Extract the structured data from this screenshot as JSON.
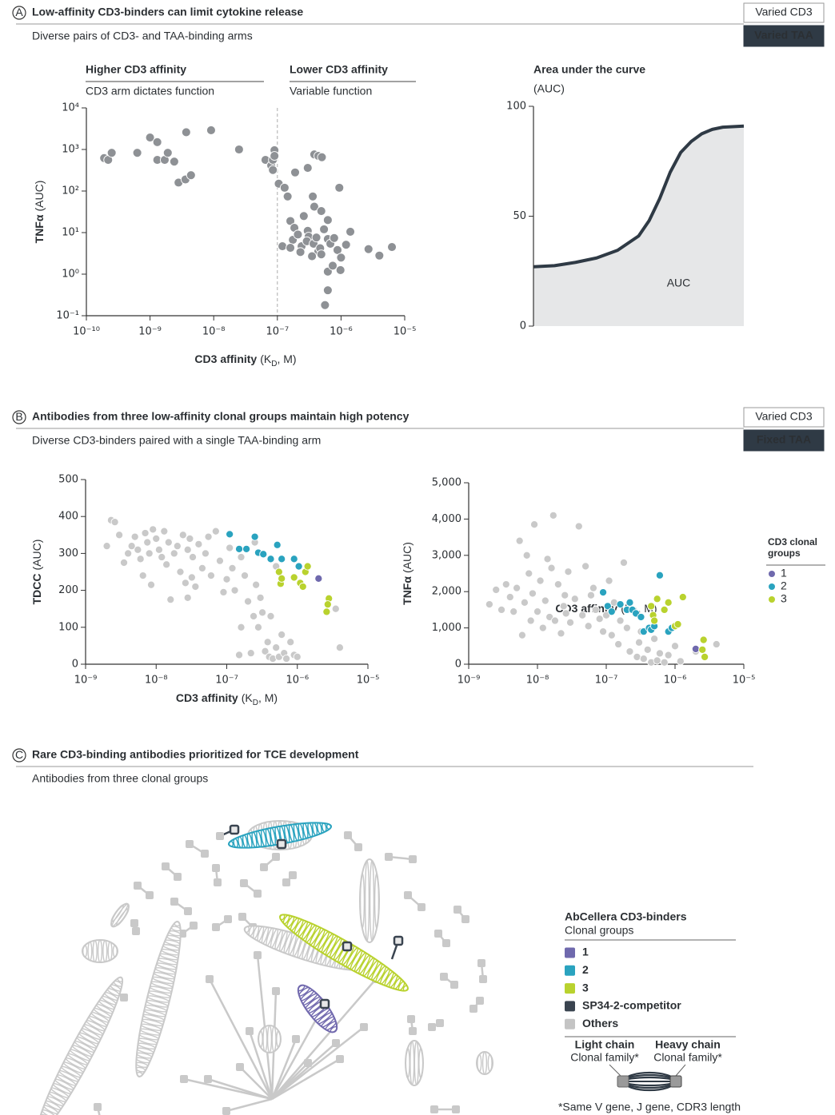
{
  "panels": [
    {
      "letter": "A",
      "title": "Low-affinity CD3-binders can limit cytokine release",
      "subtitle": "Diverse pairs of CD3- and TAA-binding arms",
      "tags": [
        "Varied CD3",
        "Varied TAA"
      ]
    },
    {
      "letter": "B",
      "title": "Antibodies from three low-affinity clonal groups maintain high potency",
      "subtitle": "Diverse CD3-binders paired with a single TAA-binding arm",
      "tags": [
        "Varied CD3",
        "Fixed TAA"
      ]
    },
    {
      "letter": "C",
      "title": "Rare CD3-binding antibodies prioritized for TCE development",
      "subtitle": "Antibodies from three clonal groups"
    }
  ],
  "chart_data": [
    {
      "type": "scatter",
      "xscale": "log",
      "yscale": "log",
      "annotations": [
        {
          "title": "Higher CD3 affinity",
          "subtitle": "CD3 arm dictates function"
        },
        {
          "title": "Lower CD3 affinity",
          "subtitle": "Variable function"
        }
      ],
      "y_label": [
        "TNFα",
        "(AUC)"
      ],
      "x_label": [
        "CD3 affinity",
        "(K",
        "D",
        ", M)"
      ],
      "xlim": [
        1e-10,
        1e-05
      ],
      "xticks": [
        {
          "value": 1e-10,
          "label": "10⁻¹⁰"
        },
        {
          "value": 1e-09,
          "label": "10⁻⁹"
        },
        {
          "value": 1e-08,
          "label": "10⁻⁸"
        },
        {
          "value": 1e-07,
          "label": "10⁻⁷"
        },
        {
          "value": 1e-06,
          "label": "10⁻⁶"
        },
        {
          "value": 1e-05,
          "label": "10⁻⁵"
        }
      ],
      "ylim": [
        0.1,
        10000
      ],
      "yticks": [
        {
          "value": 10000,
          "label": "10⁴"
        },
        {
          "value": 1000,
          "label": "10³"
        },
        {
          "value": 100,
          "label": "10²"
        },
        {
          "value": 10,
          "label": "10¹"
        },
        {
          "value": 1,
          "label": "10⁰"
        },
        {
          "value": 0.1,
          "label": "10⁻¹"
        }
      ],
      "reference_x": 1e-07,
      "series": [
        {
          "color": "#8e9195",
          "x": [
            1.9e-10,
            2.2e-10,
            2.5e-10,
            6.3e-10,
            1e-09,
            1.3e-09,
            1.3e-09,
            1.7e-09,
            1.9e-09,
            2.4e-09,
            2.8e-09,
            3.6e-09,
            4.4e-09,
            3.7e-09,
            9.1e-09,
            2.5e-08,
            6.5e-08,
            8e-08,
            8.5e-08,
            9e-08,
            9e-08,
            8.5e-08,
            1.05e-07,
            1.3e-07,
            1.45e-07,
            1.9e-07,
            3e-07,
            3.8e-07,
            4.4e-07,
            5e-07,
            3.6e-07,
            3.8e-07,
            4.9e-07,
            6.2e-07,
            9.4e-07,
            6.2e-07,
            1.6e-07,
            1.85e-07,
            1.75e-07,
            2.1e-07,
            2.4e-07,
            3e-07,
            3.1e-07,
            2.9e-07,
            3.7e-07,
            4.1e-07,
            4.4e-07,
            4.7e-07,
            4.9e-07,
            5.4e-07,
            6.8e-07,
            7.8e-07,
            8.8e-07,
            1e-06,
            9.8e-07,
            6.2e-07,
            6.2e-07,
            5.6e-07,
            1.2e-06,
            1.4e-06,
            2.7e-06,
            4e-06,
            6.3e-06,
            1.2e-07,
            1.6e-07,
            2.3e-07,
            2.6e-07,
            3.5e-07,
            7.4e-07
          ],
          "values": [
            620,
            560,
            830,
            830,
            1940,
            1500,
            560,
            560,
            830,
            510,
            160,
            190,
            240,
            2600,
            2900,
            1000,
            560,
            410,
            560,
            960,
            700,
            320,
            150,
            120,
            74,
            280,
            360,
            760,
            700,
            650,
            74,
            42,
            33,
            20,
            120,
            7,
            19,
            13,
            6.7,
            9,
            4.7,
            11,
            8,
            6.2,
            5.4,
            7.6,
            3.5,
            4.2,
            3,
            12,
            5.4,
            7.4,
            3.8,
            2.5,
            1.25,
            1.15,
            0.41,
            0.18,
            5.1,
            10.5,
            4,
            2.8,
            4.5,
            4.7,
            4.3,
            3.4,
            25,
            2.7,
            1.6
          ]
        }
      ]
    },
    {
      "type": "area",
      "title": "Area under the curve",
      "subtitle": "(AUC)",
      "annotation": "AUC",
      "xlim": [
        0,
        100
      ],
      "ylim": [
        0,
        100
      ],
      "yticks": [
        0,
        50,
        100
      ],
      "color": "#2f3a45",
      "fill": "#e6e7e8",
      "x": [
        0,
        10,
        20,
        30,
        40,
        50,
        55,
        60,
        65,
        70,
        75,
        80,
        85,
        90,
        100
      ],
      "values": [
        27,
        27.5,
        29,
        31,
        34.5,
        41,
        48,
        58,
        70,
        79,
        84,
        87.5,
        89.5,
        90.5,
        91
      ]
    },
    {
      "type": "scatter",
      "xscale": "log",
      "y_label": [
        "TDCC",
        "(AUC)"
      ],
      "x_label": [
        "CD3 affinity",
        "(K",
        "D",
        ", M)"
      ],
      "xlim": [
        1e-09,
        1e-05
      ],
      "xticks": [
        {
          "value": 1e-09,
          "label": "10⁻⁹"
        },
        {
          "value": 1e-08,
          "label": "10⁻⁸"
        },
        {
          "value": 1e-07,
          "label": "10⁻⁷"
        },
        {
          "value": 1e-06,
          "label": "10⁻⁶"
        },
        {
          "value": 1e-05,
          "label": "10⁻⁵"
        }
      ],
      "ylim": [
        0,
        500
      ],
      "yticks": [
        0,
        100,
        200,
        300,
        400,
        500
      ],
      "series": [
        {
          "color": "#c9c9c9",
          "x": [
            2.3e-09,
            2.6e-09,
            2e-09,
            3e-09,
            3.5e-09,
            4e-09,
            4.5e-09,
            5e-09,
            5.5e-09,
            6e-09,
            6.5e-09,
            7e-09,
            7.5e-09,
            8e-09,
            8.5e-09,
            9e-09,
            1e-08,
            1.1e-08,
            1.2e-08,
            1.3e-08,
            1.4e-08,
            1.5e-08,
            1.6e-08,
            1.8e-08,
            2e-08,
            2.2e-08,
            2.4e-08,
            2.6e-08,
            2.8e-08,
            3e-08,
            3.3e-08,
            3.6e-08,
            4e-08,
            4.5e-08,
            5e-08,
            5.5e-08,
            6e-08,
            7e-08,
            8e-08,
            9e-08,
            1e-07,
            1.1e-07,
            1.2e-07,
            1.3e-07,
            1.5e-07,
            1.6e-07,
            1.8e-07,
            2e-07,
            2.2e-07,
            2.4e-07,
            2.6e-07,
            2.8e-07,
            3e-07,
            3.2e-07,
            3.5e-07,
            3.8e-07,
            4e-07,
            4.2e-07,
            4.5e-07,
            5e-07,
            5.5e-07,
            6e-07,
            6.5e-07,
            7e-07,
            8e-07,
            9e-07,
            1e-06,
            3.5e-06,
            4e-06,
            1.6e-07,
            2.5e-07,
            5e-07,
            2.8e-08,
            3.2e-08
          ],
          "values": [
            390,
            385,
            320,
            350,
            275,
            300,
            320,
            345,
            310,
            285,
            240,
            355,
            330,
            300,
            215,
            365,
            340,
            310,
            290,
            360,
            270,
            330,
            175,
            300,
            320,
            250,
            350,
            220,
            310,
            340,
            290,
            210,
            325,
            260,
            300,
            345,
            240,
            360,
            280,
            195,
            230,
            315,
            260,
            200,
            25,
            290,
            240,
            170,
            30,
            130,
            215,
            100,
            180,
            140,
            35,
            60,
            20,
            130,
            15,
            45,
            20,
            80,
            30,
            15,
            60,
            25,
            20,
            150,
            45,
            100,
            330,
            265,
            180,
            235
          ]
        },
        {
          "name": "1",
          "color": "#6f69ad",
          "x": [
            2e-06
          ],
          "values": [
            232
          ]
        },
        {
          "name": "2",
          "color": "#2aa3bf",
          "x": [
            1.1e-07,
            1.5e-07,
            1.9e-07,
            2.5e-07,
            2.8e-07,
            3.3e-07,
            4.2e-07,
            5.2e-07,
            6e-07,
            9e-07,
            1.05e-06
          ],
          "values": [
            352,
            312,
            312,
            345,
            302,
            298,
            285,
            323,
            285,
            285,
            265
          ]
        },
        {
          "name": "3",
          "color": "#b9d22e",
          "x": [
            5.5e-07,
            5.8e-07,
            6e-07,
            9e-07,
            1.1e-06,
            1.3e-06,
            1.4e-06,
            1.2e-06,
            2.8e-06,
            2.7e-06,
            2.6e-06
          ],
          "values": [
            250,
            218,
            232,
            235,
            220,
            250,
            265,
            210,
            178,
            162,
            142
          ]
        }
      ]
    },
    {
      "type": "scatter",
      "xscale": "log",
      "legend_title": "CD3 clonal groups",
      "y_label": [
        "TNFα",
        "(AUC)"
      ],
      "x_label": [
        "CD3 affinity",
        "(K",
        "D",
        ", M)"
      ],
      "xlim": [
        1e-09,
        1e-05
      ],
      "xticks": [
        {
          "value": 1e-09,
          "label": "10⁻⁹"
        },
        {
          "value": 1e-08,
          "label": "10⁻⁸"
        },
        {
          "value": 1e-07,
          "label": "10⁻⁷"
        },
        {
          "value": 1e-06,
          "label": "10⁻⁶"
        },
        {
          "value": 1e-05,
          "label": "10⁻⁵"
        }
      ],
      "ylim": [
        0,
        5000
      ],
      "yticks": [
        0,
        {
          "value": 1000,
          "label": "1,000"
        },
        {
          "value": 2000,
          "label": "2,000"
        },
        {
          "value": 3000,
          "label": "3,000"
        },
        {
          "value": 4000,
          "label": "4,000"
        },
        {
          "value": 5000,
          "label": "5,000"
        }
      ],
      "series": [
        {
          "color": "#c9c9c9",
          "x": [
            2e-09,
            2.5e-09,
            3e-09,
            3.5e-09,
            4e-09,
            4.5e-09,
            5e-09,
            5.5e-09,
            6e-09,
            6.5e-09,
            7e-09,
            7.5e-09,
            8e-09,
            8.5e-09,
            9e-09,
            1e-08,
            1.1e-08,
            1.2e-08,
            1.3e-08,
            1.4e-08,
            1.5e-08,
            1.6e-08,
            1.7e-08,
            1.8e-08,
            2e-08,
            2.2e-08,
            2.4e-08,
            2.6e-08,
            2.8e-08,
            3e-08,
            3.5e-08,
            4e-08,
            4.5e-08,
            5e-08,
            5.5e-08,
            6e-08,
            7e-08,
            8e-08,
            9e-08,
            1e-07,
            1.1e-07,
            1.2e-07,
            1.3e-07,
            1.5e-07,
            1.6e-07,
            1.8e-07,
            2e-07,
            2.2e-07,
            2.5e-07,
            2.8e-07,
            3e-07,
            3.2e-07,
            3.5e-07,
            4e-07,
            4.5e-07,
            5e-07,
            5.5e-07,
            6e-07,
            7e-07,
            8e-07,
            1e-06,
            1.2e-06,
            2e-06,
            4e-06,
            2.5e-08,
            6.5e-08
          ],
          "values": [
            1650,
            2050,
            1500,
            2200,
            1850,
            1450,
            2100,
            3400,
            800,
            1700,
            3000,
            2500,
            1200,
            1950,
            3850,
            1450,
            2300,
            1000,
            1750,
            2900,
            1300,
            2650,
            4100,
            1200,
            2200,
            850,
            1600,
            1400,
            2550,
            1150,
            1800,
            3800,
            1350,
            2700,
            1050,
            1900,
            1500,
            1250,
            900,
            1350,
            2300,
            800,
            1700,
            550,
            1200,
            2800,
            1000,
            350,
            1500,
            200,
            600,
            900,
            150,
            400,
            50,
            700,
            100,
            300,
            50,
            250,
            500,
            80,
            350,
            550,
            1900,
            2100
          ]
        },
        {
          "name": "1",
          "color": "#6f69ad",
          "x": [
            2e-06
          ],
          "values": [
            420
          ]
        },
        {
          "name": "2",
          "color": "#2aa3bf",
          "x": [
            9e-08,
            1.05e-07,
            1.2e-07,
            1.6e-07,
            2e-07,
            2.2e-07,
            2.4e-07,
            2.7e-07,
            3.2e-07,
            3.5e-07,
            4.2e-07,
            4.5e-07,
            5e-07,
            6e-07,
            8e-07,
            9e-07
          ],
          "values": [
            1980,
            1600,
            1450,
            1650,
            1500,
            1700,
            1500,
            1400,
            1300,
            900,
            1000,
            950,
            1050,
            2450,
            900,
            1000
          ]
        },
        {
          "name": "3",
          "color": "#b9d22e",
          "x": [
            4.5e-07,
            4.8e-07,
            5e-07,
            5.5e-07,
            7e-07,
            8e-07,
            1e-06,
            1.1e-06,
            1.3e-06,
            2.6e-06,
            2.5e-06,
            2.7e-06
          ],
          "values": [
            1600,
            1350,
            1200,
            1800,
            1500,
            1700,
            1050,
            1100,
            1850,
            670,
            400,
            200
          ]
        }
      ]
    }
  ],
  "network_legend": {
    "title": "AbCellera CD3-binders",
    "subtitle": "Clonal groups",
    "items": [
      {
        "label": "1",
        "color": "#6f69ad"
      },
      {
        "label": "2",
        "color": "#2aa3bf"
      },
      {
        "label": "3",
        "color": "#b9d22e"
      },
      {
        "label": "SP34-2-competitor",
        "color": "#3a4450"
      },
      {
        "label": "Others",
        "color": "#c4c4c4"
      }
    ],
    "light_chain": {
      "title": "Light chain",
      "subtitle": "Clonal family*"
    },
    "heavy_chain": {
      "title": "Heavy chain",
      "subtitle": "Clonal family*"
    },
    "footnote": "*Same V gene, J gene, CDR3 length"
  }
}
